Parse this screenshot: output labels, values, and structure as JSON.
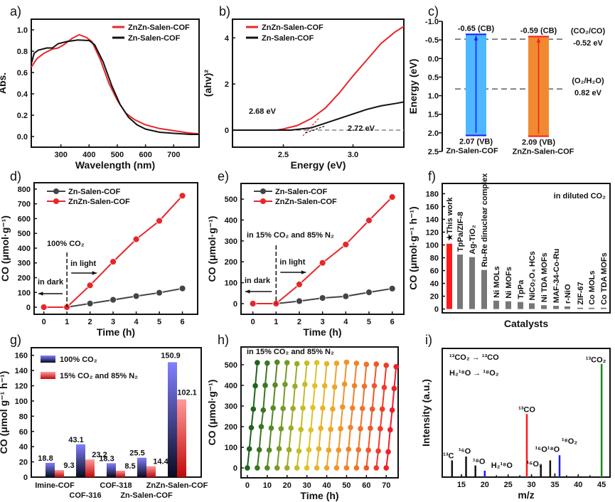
{
  "chart_data": [
    {
      "panel": "a)",
      "type": "line",
      "xlabel": "Wavelength (nm)",
      "ylabel": "Abs.",
      "xlim": [
        195,
        790
      ],
      "ylim": [
        -0.1,
        1.1
      ],
      "xticks": [
        "300",
        "400",
        "500",
        "600",
        "700"
      ],
      "yticks": [
        "0.0",
        "0.2",
        "0.4",
        "0.6",
        "0.8",
        "1.0"
      ],
      "legend": "top-right",
      "series": [
        {
          "name": "ZnZn-Salen-COF",
          "color": "#e8262a",
          "x": [
            195,
            215,
            240,
            270,
            290,
            310,
            340,
            365,
            390,
            410,
            440,
            470,
            500,
            530,
            560,
            600,
            650,
            700,
            750,
            790
          ],
          "y": [
            0.65,
            0.73,
            0.78,
            0.82,
            0.83,
            0.86,
            0.92,
            0.955,
            0.93,
            0.89,
            0.72,
            0.5,
            0.34,
            0.22,
            0.16,
            0.11,
            0.075,
            0.055,
            0.035,
            0.025
          ]
        },
        {
          "name": "Zn-Salen-COF",
          "color": "#111111",
          "x": [
            195,
            205,
            220,
            250,
            270,
            290,
            320,
            360,
            400,
            420,
            450,
            480,
            510,
            540,
            570,
            600,
            650,
            700,
            760,
            790
          ],
          "y": [
            0.68,
            0.78,
            0.81,
            0.83,
            0.83,
            0.87,
            0.89,
            0.905,
            0.9,
            0.86,
            0.7,
            0.48,
            0.3,
            0.18,
            0.11,
            0.07,
            0.04,
            0.03,
            0.02,
            0.02
          ]
        }
      ]
    },
    {
      "panel": "b)",
      "type": "line",
      "xlabel": "Energy (eV)",
      "ylabel": "(ahv)²",
      "xlim": [
        2.135,
        3.365
      ],
      "ylim": [
        -0.74,
        4.81
      ],
      "xticks": [
        "2.5",
        "3.0"
      ],
      "yticks": [
        "0",
        "2",
        "4"
      ],
      "legend": "top-left",
      "annotations": [
        "2.68 eV",
        "2.72 eV"
      ],
      "series": [
        {
          "name": "ZnZn-Salen-COF",
          "color": "#e8262a",
          "x": [
            2.135,
            2.45,
            2.5,
            2.6,
            2.7,
            2.8,
            2.9,
            3.0,
            3.1,
            3.2,
            3.3,
            3.365
          ],
          "y": [
            0,
            0,
            0.05,
            0.2,
            0.5,
            0.95,
            1.6,
            2.35,
            3.05,
            3.75,
            4.25,
            4.5
          ]
        },
        {
          "name": "Zn-Salen-COF",
          "color": "#111111",
          "x": [
            2.135,
            2.55,
            2.6,
            2.7,
            2.8,
            2.9,
            3.0,
            3.1,
            3.2,
            3.3,
            3.365
          ],
          "y": [
            0,
            0,
            0.03,
            0.1,
            0.3,
            0.5,
            0.7,
            0.9,
            1.05,
            1.15,
            1.22
          ]
        }
      ]
    },
    {
      "panel": "c)",
      "type": "bar",
      "ylabel": "Energy (eV)",
      "ylim": [
        -1.0,
        2.5
      ],
      "y_inverted": true,
      "yticks": [
        "-1.0",
        "-0.5",
        "0.0",
        "0.5",
        "1.0",
        "1.5",
        "2.0",
        "2.5"
      ],
      "bands": [
        {
          "name": "Zn-Salen-COF",
          "cb": -0.65,
          "vb": 2.07,
          "cb_label": "-0.65 (CB)",
          "vb_label": "2.07 (VB)",
          "color": "#4db8ff",
          "text_color": "#1a1aff",
          "arrow_color": "#1a1aff"
        },
        {
          "name": "ZnZn-Salen-COF",
          "cb": -0.59,
          "vb": 2.09,
          "cb_label": "-0.59 (CB)",
          "vb_label": "2.09 (VB)",
          "color": "#f08a30",
          "text_color": "#ff1a1a",
          "arrow_color": "#ff1a1a"
        }
      ],
      "potentials": [
        {
          "couple": "(CO₂/CO)",
          "value": -0.52,
          "label": "-0.52 eV",
          "color": "#1a1aff"
        },
        {
          "couple": "(O₂/H₂O)",
          "value": 0.82,
          "label": "0.82 eV",
          "color": "#111111"
        }
      ]
    },
    {
      "panel": "d)",
      "type": "line",
      "xlabel": "Time (h)",
      "ylabel": "CO (μmol·g⁻¹)",
      "xlim": [
        -0.42,
        6.66
      ],
      "ylim": [
        -48,
        843
      ],
      "xticks": [
        "0",
        "1",
        "2",
        "3",
        "4",
        "5",
        "6"
      ],
      "yticks": [
        "0",
        "100",
        "200",
        "300",
        "400",
        "500",
        "600",
        "700",
        "800"
      ],
      "legend": "top-left",
      "condition": "100% CO₂",
      "condition_color": "#1a1aff",
      "dark_label": "in dark",
      "light_label": "in light",
      "series": [
        {
          "name": "Zn-Salen-COF",
          "color": "#444444",
          "x": [
            0,
            1,
            2,
            3,
            4,
            5,
            6
          ],
          "y": [
            0,
            0,
            25,
            50,
            75,
            98,
            127
          ]
        },
        {
          "name": "ZnZn-Salen-COF",
          "color": "#e8262a",
          "x": [
            0,
            1,
            2,
            3,
            4,
            5,
            6
          ],
          "y": [
            0,
            0,
            148,
            308,
            460,
            585,
            755
          ]
        }
      ]
    },
    {
      "panel": "e)",
      "type": "line",
      "xlabel": "Time (h)",
      "ylabel": "CO (μmol·g⁻¹)",
      "xlim": [
        -0.51,
        6.5
      ],
      "ylim": [
        -51,
        575
      ],
      "xticks": [
        "0",
        "1",
        "2",
        "3",
        "4",
        "5",
        "6"
      ],
      "yticks": [
        "0",
        "100",
        "200",
        "300",
        "400",
        "500"
      ],
      "legend": "top-left",
      "condition": "in 15% CO₂ and 85% N₂",
      "condition_color": "#ff1a1a",
      "dark_label": "in dark",
      "light_label": "in light",
      "series": [
        {
          "name": "Zn-Salen-COF",
          "color": "#444444",
          "x": [
            0,
            1,
            2,
            3,
            4,
            5,
            6
          ],
          "y": [
            0,
            0,
            12,
            27,
            35,
            54,
            72
          ]
        },
        {
          "name": "ZnZn-Salen-COF",
          "color": "#e8262a",
          "x": [
            0,
            1,
            2,
            3,
            4,
            5,
            6
          ],
          "y": [
            0,
            0,
            92,
            195,
            283,
            398,
            510
          ]
        }
      ]
    },
    {
      "panel": "f)",
      "type": "bar",
      "xlabel": "Catalysts",
      "ylabel": "CO (μmol·g⁻¹ h⁻¹)",
      "ylim": [
        -6,
        196
      ],
      "yticks": [
        "0",
        "20",
        "40",
        "60",
        "80",
        "100",
        "120",
        "140",
        "160",
        "180"
      ],
      "annotation": "in diluted CO₂",
      "categories": [
        "★This work",
        "TpPa/ZIF-8",
        "Ag-TiO₂",
        "Ru-Re dinuclear complex",
        "Ni MOLs",
        "Ni MOFs",
        "TpPa",
        "NiCo₂O₄ HCs",
        "Ni TDA MOFs",
        "MAF-34-Co-Ru",
        "r-NiO",
        "ZIF-67",
        "Co MOLs",
        "Co TDA MOFs"
      ],
      "values": [
        102,
        85,
        81,
        61,
        13,
        12,
        11,
        9,
        6,
        5,
        4,
        2,
        2,
        2
      ],
      "highlight_color": "#ff1a1a",
      "bar_color": "#777777"
    },
    {
      "panel": "g)",
      "type": "bar",
      "ylabel": "CO (μmol g⁻¹ h⁻¹)",
      "ylim": [
        0,
        170
      ],
      "yticks": [
        "0",
        "20",
        "40",
        "60",
        "80",
        "100",
        "120",
        "140",
        "160"
      ],
      "legend": "top-left",
      "categories": [
        "Imine-COF",
        "COF-316",
        "COF-318",
        "Zn-Salen-COF",
        "ZnZn-Salen-COF"
      ],
      "series": [
        {
          "name": "100% CO₂",
          "values": [
            18.8,
            43.1,
            18.3,
            25.5,
            150.9
          ],
          "labels": [
            "18.8",
            "43.1",
            "18.3",
            "25.5",
            "150.9"
          ]
        },
        {
          "name": "15% CO₂ and 85% N₂",
          "values": [
            9.3,
            23.2,
            8.5,
            14.4,
            102.1
          ],
          "labels": [
            "9.3",
            "23.2",
            "8.5",
            "14.4",
            "102.1"
          ]
        }
      ]
    },
    {
      "panel": "h)",
      "type": "line",
      "xlabel": "Time (h)",
      "ylabel": "CO (μmol·g⁻¹)",
      "xlim": [
        -3.2,
        76
      ],
      "ylim": [
        -48,
        586
      ],
      "xticks": [
        "0",
        "10",
        "20",
        "30",
        "40",
        "50",
        "60",
        "70"
      ],
      "yticks": [
        "0",
        "100",
        "200",
        "300",
        "400",
        "500"
      ],
      "condition": "in 15% CO₂ and 85% N₂",
      "cycle_hours": 5,
      "cycles": [
        [
          0,
          92,
          195,
          285,
          398,
          510
        ],
        [
          0,
          88,
          200,
          280,
          400,
          508
        ],
        [
          0,
          86,
          193,
          290,
          402,
          512
        ],
        [
          0,
          93,
          190,
          288,
          405,
          510
        ],
        [
          0,
          88,
          193,
          288,
          396,
          505
        ],
        [
          0,
          82,
          186,
          290,
          405,
          508
        ],
        [
          0,
          88,
          184,
          292,
          398,
          510
        ],
        [
          0,
          92,
          192,
          290,
          398,
          505
        ],
        [
          0,
          86,
          187,
          285,
          392,
          507
        ],
        [
          0,
          86,
          190,
          295,
          406,
          512
        ],
        [
          0,
          90,
          196,
          290,
          398,
          507
        ],
        [
          0,
          88,
          190,
          288,
          396,
          502
        ],
        [
          0,
          86,
          192,
          285,
          398,
          503
        ],
        [
          0,
          82,
          190,
          285,
          390,
          497
        ],
        [
          0,
          78,
          185,
          280,
          385,
          490
        ]
      ]
    },
    {
      "panel": "i)",
      "type": "bar",
      "xlabel": "m/z",
      "ylabel": "Intensity (a.u.)",
      "xlim": [
        10.9,
        46.8
      ],
      "ylim": [
        0,
        100
      ],
      "xticks": [
        "15",
        "20",
        "25",
        "30",
        "35",
        "40",
        "45"
      ],
      "legend": [
        "¹³CO₂ → ¹³CO",
        "H₂¹⁸O → ¹⁸O₂"
      ],
      "peaks": [
        {
          "mz": 13,
          "intensity": 13,
          "label": "¹³C",
          "color": "#111111"
        },
        {
          "mz": 15,
          "intensity": 2,
          "label": null,
          "color": "#111111"
        },
        {
          "mz": 16,
          "intensity": 16,
          "label": "¹⁶O",
          "color": "#111111"
        },
        {
          "mz": 18,
          "intensity": 9,
          "label": "¹⁸O",
          "color": "#111111"
        },
        {
          "mz": 20,
          "intensity": 5,
          "label": "H₂¹⁸O",
          "color": "#1a1aff"
        },
        {
          "mz": 22.5,
          "intensity": 1,
          "label": null,
          "color": "#111111"
        },
        {
          "mz": 25,
          "intensity": 2,
          "label": null,
          "color": "#111111"
        },
        {
          "mz": 27.5,
          "intensity": 1,
          "label": null,
          "color": "#111111"
        },
        {
          "mz": 29,
          "intensity": 49,
          "label": "¹³CO",
          "color": "#ff1a1a"
        },
        {
          "mz": 30,
          "intensity": 2,
          "label": null,
          "color": "#111111"
        },
        {
          "mz": 32,
          "intensity": 9.5,
          "label": "¹⁶O₂",
          "color": "#111111"
        },
        {
          "mz": 34,
          "intensity": 13,
          "label": "¹⁶O¹⁸O",
          "color": "#111111"
        },
        {
          "mz": 35,
          "intensity": 3,
          "label": null,
          "color": "#111111"
        },
        {
          "mz": 36,
          "intensity": 17,
          "label": "¹⁸O₂",
          "color": "#1a1aff"
        },
        {
          "mz": 37.5,
          "intensity": 1,
          "label": null,
          "color": "#111111"
        },
        {
          "mz": 40,
          "intensity": 2,
          "label": null,
          "color": "#111111"
        },
        {
          "mz": 42.5,
          "intensity": 1,
          "label": null,
          "color": "#111111"
        },
        {
          "mz": 45,
          "intensity": 88,
          "label": "¹³CO₂",
          "color": "#1a8a1a"
        }
      ]
    }
  ]
}
